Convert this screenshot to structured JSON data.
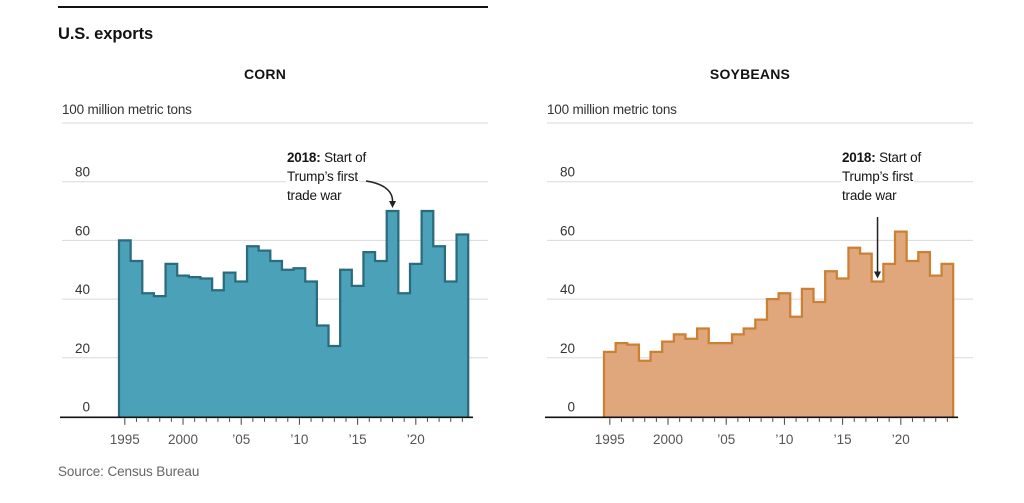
{
  "header": {
    "title": "U.S. exports"
  },
  "footer": {
    "source": "Source: Census Bureau"
  },
  "chart_data": [
    {
      "id": "corn",
      "type": "area",
      "step": true,
      "title": "CORN",
      "unit_label": "100 million metric tons",
      "ylim": [
        0,
        100
      ],
      "y_ticks": [
        0,
        20,
        40,
        60,
        80
      ],
      "grid": true,
      "x_tick_labels": [
        "1995",
        "2000",
        "’05",
        "’10",
        "’15",
        "’20"
      ],
      "x_tick_years": [
        1995,
        2000,
        2005,
        2010,
        2015,
        2020
      ],
      "years_start": 1995,
      "years_end": 2024,
      "values": [
        60,
        53,
        42,
        41,
        52,
        48,
        47.5,
        47,
        43,
        49,
        46,
        58,
        56.5,
        53,
        50,
        50.5,
        46,
        31,
        24,
        50,
        44.5,
        56,
        53,
        70,
        42,
        52,
        70,
        58,
        46,
        62
      ],
      "annotation": {
        "bold": "2018:",
        "line1_rest": " Start of",
        "line2": "Trump’s first",
        "line3": "trade war",
        "target_year": 2018,
        "arrow": "curved"
      },
      "colors": {
        "fill": "#4AA1B8",
        "stroke": "#2C6B7E"
      }
    },
    {
      "id": "soybeans",
      "type": "area",
      "step": true,
      "title": "SOYBEANS",
      "unit_label": "100 million metric tons",
      "ylim": [
        0,
        100
      ],
      "y_ticks": [
        0,
        20,
        40,
        60,
        80
      ],
      "grid": true,
      "x_tick_labels": [
        "1995",
        "2000",
        "’05",
        "’10",
        "’15",
        "’20"
      ],
      "x_tick_years": [
        1995,
        2000,
        2005,
        2010,
        2015,
        2020
      ],
      "years_start": 1995,
      "years_end": 2024,
      "values": [
        22,
        25,
        24.5,
        19,
        22,
        25.5,
        28,
        26.5,
        30,
        25,
        25,
        28,
        30,
        33,
        40,
        42,
        34,
        43.5,
        39,
        49.5,
        47,
        57.5,
        55.5,
        46,
        52,
        63,
        53,
        56,
        48,
        52
      ],
      "annotation": {
        "bold": "2018:",
        "line1_rest": " Start of",
        "line2": "Trump’s first",
        "line3": "trade war",
        "target_year": 2018,
        "arrow": "straight"
      },
      "colors": {
        "fill": "#E0A67C",
        "stroke": "#CC8033"
      }
    }
  ]
}
